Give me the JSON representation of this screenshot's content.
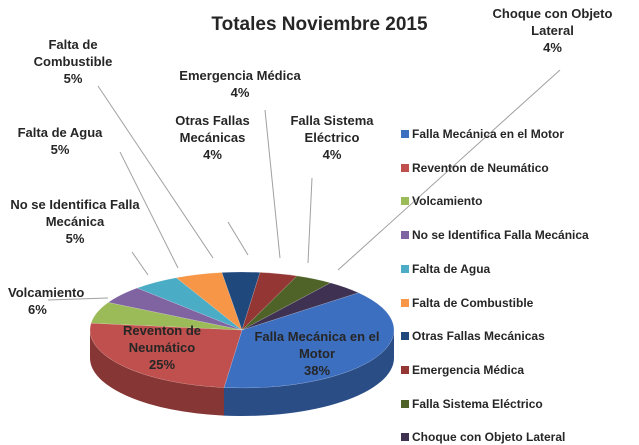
{
  "chart_data": {
    "type": "pie3d",
    "title": "Totales Noviembre 2015",
    "categories": [
      "Falla Mecánica en el Motor",
      "Reventon de Neumático",
      "Volcamiento",
      "No se Identifica Falla Mecánica",
      "Falta de Agua",
      "Falta de Combustible",
      "Otras Fallas Mecánicas",
      "Emergencia Médica",
      "Falla Sistema Eléctrico",
      "Choque con Objeto Lateral"
    ],
    "values": [
      38,
      25,
      6,
      5,
      5,
      5,
      4,
      4,
      4,
      4
    ],
    "value_labels": [
      "38%",
      "25%",
      "6%",
      "5%",
      "5%",
      "5%",
      "4%",
      "4%",
      "4%",
      "4%"
    ],
    "colors": [
      "#3d6fc0",
      "#c0504d",
      "#9bbb59",
      "#8064a2",
      "#4bacc6",
      "#f79646",
      "#1f497d",
      "#943634",
      "#4f6228",
      "#3f3151"
    ],
    "legend": "right"
  }
}
